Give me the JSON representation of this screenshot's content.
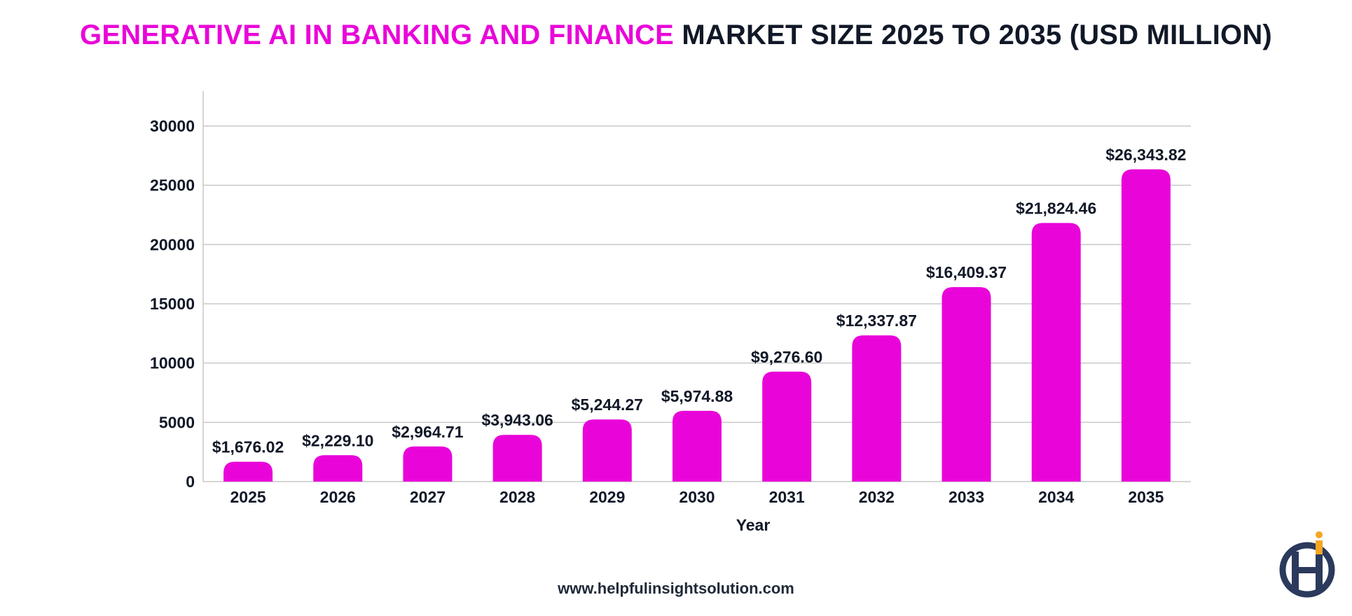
{
  "title": {
    "accent": "GENERATIVE AI IN BANKING AND FINANCE",
    "rest": "MARKET SIZE 2025 TO 2035 (USD MILLION)"
  },
  "website": "www.helpfulinsightsolution.com",
  "colors": {
    "bar": "#e905d9",
    "accent": "#e905d9",
    "text": "#111827",
    "grid": "#c8c8c8",
    "logo_navy": "#2b3a5c",
    "logo_orange": "#f5a623"
  },
  "chart_data": {
    "type": "bar",
    "categories": [
      "2025",
      "2026",
      "2027",
      "2028",
      "2029",
      "2030",
      "2031",
      "2032",
      "2033",
      "2034",
      "2035"
    ],
    "values": [
      1676.02,
      2229.1,
      2964.71,
      3943.06,
      5244.27,
      5974.88,
      9276.6,
      12337.87,
      16409.37,
      21824.46,
      26343.82
    ],
    "data_labels": [
      "$1,676.02",
      "$2,229.10",
      "$2,964.71",
      "$3,943.06",
      "$5,244.27",
      "$5,974.88",
      "$9,276.60",
      "$12,337.87",
      "$16,409.37",
      "$21,824.46",
      "$26,343.82"
    ],
    "xlabel": "Year",
    "ylabel": "",
    "ylim": [
      0,
      30000
    ],
    "yticks": [
      "0",
      "5000",
      "10000",
      "15000",
      "20000",
      "25000",
      "30000"
    ],
    "grid": true
  }
}
